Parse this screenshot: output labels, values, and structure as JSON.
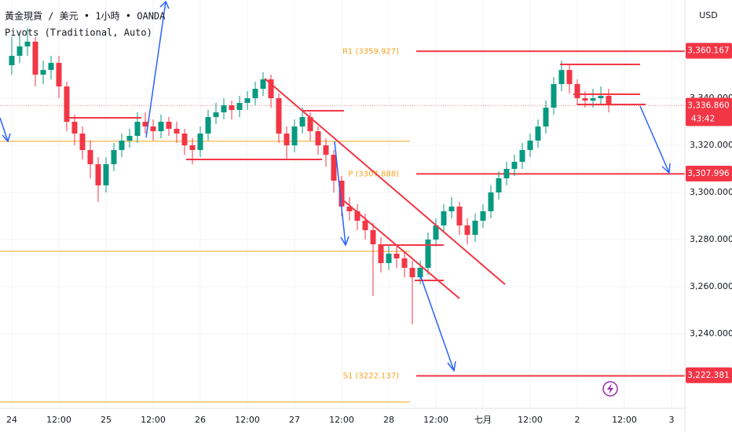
{
  "chart_data": {
    "type": "candlestick",
    "title": "黃金現貨 / 美元 • 1小時 • OANDA",
    "subtitle": "Pivots (Traditional, Auto)",
    "y_axis_label": "USD",
    "up_color": "#089981",
    "down_color": "#f23645",
    "grid": true,
    "categories": [
      "24",
      null,
      null,
      null,
      null,
      null,
      "12:00",
      null,
      null,
      null,
      null,
      null,
      "25",
      null,
      null,
      null,
      null,
      null,
      "12:00",
      null,
      null,
      null,
      null,
      null,
      "26",
      null,
      null,
      null,
      null,
      null,
      "12:00",
      null,
      null,
      null,
      null,
      null,
      "27",
      null,
      null,
      null,
      null,
      null,
      "12:00",
      null,
      null,
      null,
      null,
      null,
      "28",
      null,
      null,
      null,
      null,
      null,
      "12:00",
      null,
      null,
      null,
      null,
      null,
      "七月",
      null,
      null,
      null,
      null,
      null,
      "12:00",
      null,
      null,
      null,
      null,
      null,
      "2",
      null,
      null,
      null,
      null,
      null,
      "12:00",
      null,
      null,
      null,
      null,
      null,
      "3"
    ],
    "open": [
      3354,
      3358,
      3362,
      3364,
      3350,
      3352,
      3355,
      3345,
      3330,
      3325,
      3318,
      3312,
      3303,
      3312,
      3318,
      3322,
      3324,
      3330,
      3328,
      3326,
      3330,
      3327,
      3325,
      3320,
      3318,
      3325,
      3332,
      3334,
      3337,
      3335,
      3338,
      3340,
      3344,
      3348,
      3340,
      3325,
      3320,
      3328,
      3332,
      3326,
      3320,
      3316,
      3305,
      3294,
      3292,
      3288,
      3284,
      3278,
      3270,
      3274,
      3272,
      3268,
      3264,
      3268,
      3280,
      3286,
      3292,
      3294,
      3286,
      3282,
      3288,
      3292,
      3300,
      3306,
      3310,
      3313,
      3318,
      3322,
      3328,
      3336,
      3346,
      3352,
      3346,
      3340,
      3339,
      3340,
      3341,
      null,
      null,
      null,
      null,
      null,
      null,
      null,
      null
    ],
    "high": [
      3366,
      3368,
      3370,
      3366,
      3356,
      3358,
      3358,
      3347,
      3333,
      3328,
      3322,
      3315,
      3315,
      3321,
      3325,
      3327,
      3334,
      3334,
      3331,
      3333,
      3332,
      3330,
      3327,
      3323,
      3328,
      3335,
      3338,
      3340,
      3339,
      3341,
      3343,
      3347,
      3351,
      3350,
      3342,
      3328,
      3331,
      3336,
      3334,
      3328,
      3323,
      3318,
      3307,
      3298,
      3295,
      3291,
      3287,
      3281,
      3278,
      3277,
      3275,
      3271,
      3271,
      3283,
      3289,
      3295,
      3298,
      3296,
      3289,
      3291,
      3295,
      3303,
      3309,
      3313,
      3316,
      3321,
      3325,
      3331,
      3339,
      3349,
      3356,
      3354,
      3348,
      3343,
      3344,
      3345,
      3344,
      null,
      null,
      null,
      null,
      null,
      null,
      null,
      null
    ],
    "low": [
      3350,
      3355,
      3358,
      3345,
      3346,
      3348,
      3340,
      3326,
      3320,
      3314,
      3306,
      3296,
      3300,
      3309,
      3315,
      3319,
      3321,
      3325,
      3322,
      3323,
      3324,
      3321,
      3316,
      3312,
      3315,
      3322,
      3329,
      3331,
      3331,
      3332,
      3335,
      3337,
      3341,
      3336,
      3321,
      3314,
      3317,
      3325,
      3322,
      3316,
      3311,
      3300,
      3290,
      3288,
      3284,
      3280,
      3256,
      3266,
      3267,
      3268,
      3264,
      3244,
      3261,
      3265,
      3277,
      3283,
      3289,
      3282,
      3278,
      3279,
      3285,
      3289,
      3297,
      3303,
      3307,
      3310,
      3315,
      3319,
      3325,
      3333,
      3343,
      3342,
      3337,
      3336,
      3336,
      3337,
      3334,
      null,
      null,
      null,
      null,
      null,
      null,
      null,
      null
    ],
    "close": [
      3358,
      3362,
      3364,
      3350,
      3352,
      3355,
      3345,
      3330,
      3325,
      3318,
      3312,
      3303,
      3312,
      3318,
      3322,
      3324,
      3330,
      3328,
      3326,
      3330,
      3327,
      3325,
      3320,
      3318,
      3325,
      3332,
      3334,
      3337,
      3335,
      3338,
      3340,
      3344,
      3348,
      3340,
      3325,
      3320,
      3328,
      3332,
      3326,
      3320,
      3316,
      3305,
      3294,
      3292,
      3288,
      3284,
      3278,
      3270,
      3274,
      3272,
      3268,
      3264,
      3268,
      3280,
      3286,
      3292,
      3294,
      3286,
      3282,
      3288,
      3292,
      3300,
      3306,
      3310,
      3313,
      3318,
      3322,
      3328,
      3336,
      3346,
      3352,
      3346,
      3340,
      3339,
      3340,
      3341,
      3337,
      null,
      null,
      null,
      null,
      null,
      null,
      null,
      null
    ],
    "ylim": [
      3208.3,
      3381.7
    ],
    "yticks": [
      {
        "value": 3240,
        "label": "3,240.000"
      },
      {
        "value": 3260,
        "label": "3,260.000"
      },
      {
        "value": 3280,
        "label": "3,280.000"
      },
      {
        "value": 3300,
        "label": "3,300.000"
      },
      {
        "value": 3320,
        "label": "3,320.000"
      },
      {
        "value": 3340,
        "label": "3,340.000"
      }
    ],
    "pivots": [
      {
        "label": "R1 (3359.927)",
        "value": 3359.927
      },
      {
        "label": "P (3307.888)",
        "value": 3307.888
      },
      {
        "label": "S1 (3222.137)",
        "value": 3222.137
      }
    ],
    "pivot_color": "#f7a21b",
    "other_levels": [
      3321.7,
      3275,
      3211
    ],
    "price_tags": [
      {
        "value": 3360.167,
        "label": "3,360.167"
      },
      {
        "value": 3336.86,
        "label": "3,336.860",
        "countdown": "43:42"
      },
      {
        "value": 3307.996,
        "label": "3,307.996"
      },
      {
        "value": 3222.381,
        "label": "3,222.381"
      }
    ],
    "tag_color": "#f23645"
  }
}
